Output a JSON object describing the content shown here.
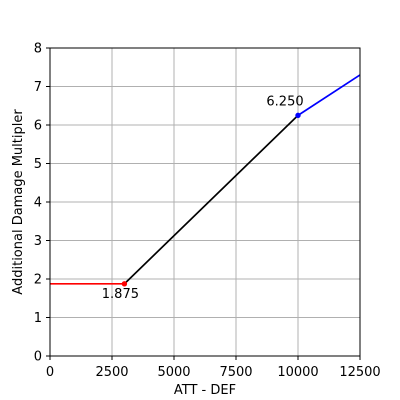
{
  "chart_data": {
    "type": "line",
    "xlabel": "ATT - DEF",
    "ylabel": "Additional Damage Multipler",
    "xlim": [
      0,
      12500
    ],
    "ylim": [
      0,
      8
    ],
    "x_ticks": [
      "0",
      "2500",
      "5000",
      "7500",
      "10000",
      "12500"
    ],
    "y_ticks": [
      "0",
      "1",
      "2",
      "3",
      "4",
      "5",
      "6",
      "7",
      "8"
    ],
    "grid": true,
    "series": [
      {
        "color": "#ff0000",
        "x": [
          0,
          3000
        ],
        "y": [
          1.875,
          1.875
        ]
      },
      {
        "color": "#000000",
        "x": [
          3000,
          10000
        ],
        "y": [
          1.875,
          6.25
        ]
      },
      {
        "color": "#0000ff",
        "x": [
          10000,
          12500
        ],
        "y": [
          6.25,
          7.3
        ]
      }
    ],
    "points": [
      {
        "x": 3000,
        "y": 1.875,
        "color": "#ff0000",
        "label": "1.875"
      },
      {
        "x": 10000,
        "y": 6.25,
        "color": "#0000ff",
        "label": "6.250"
      }
    ]
  }
}
